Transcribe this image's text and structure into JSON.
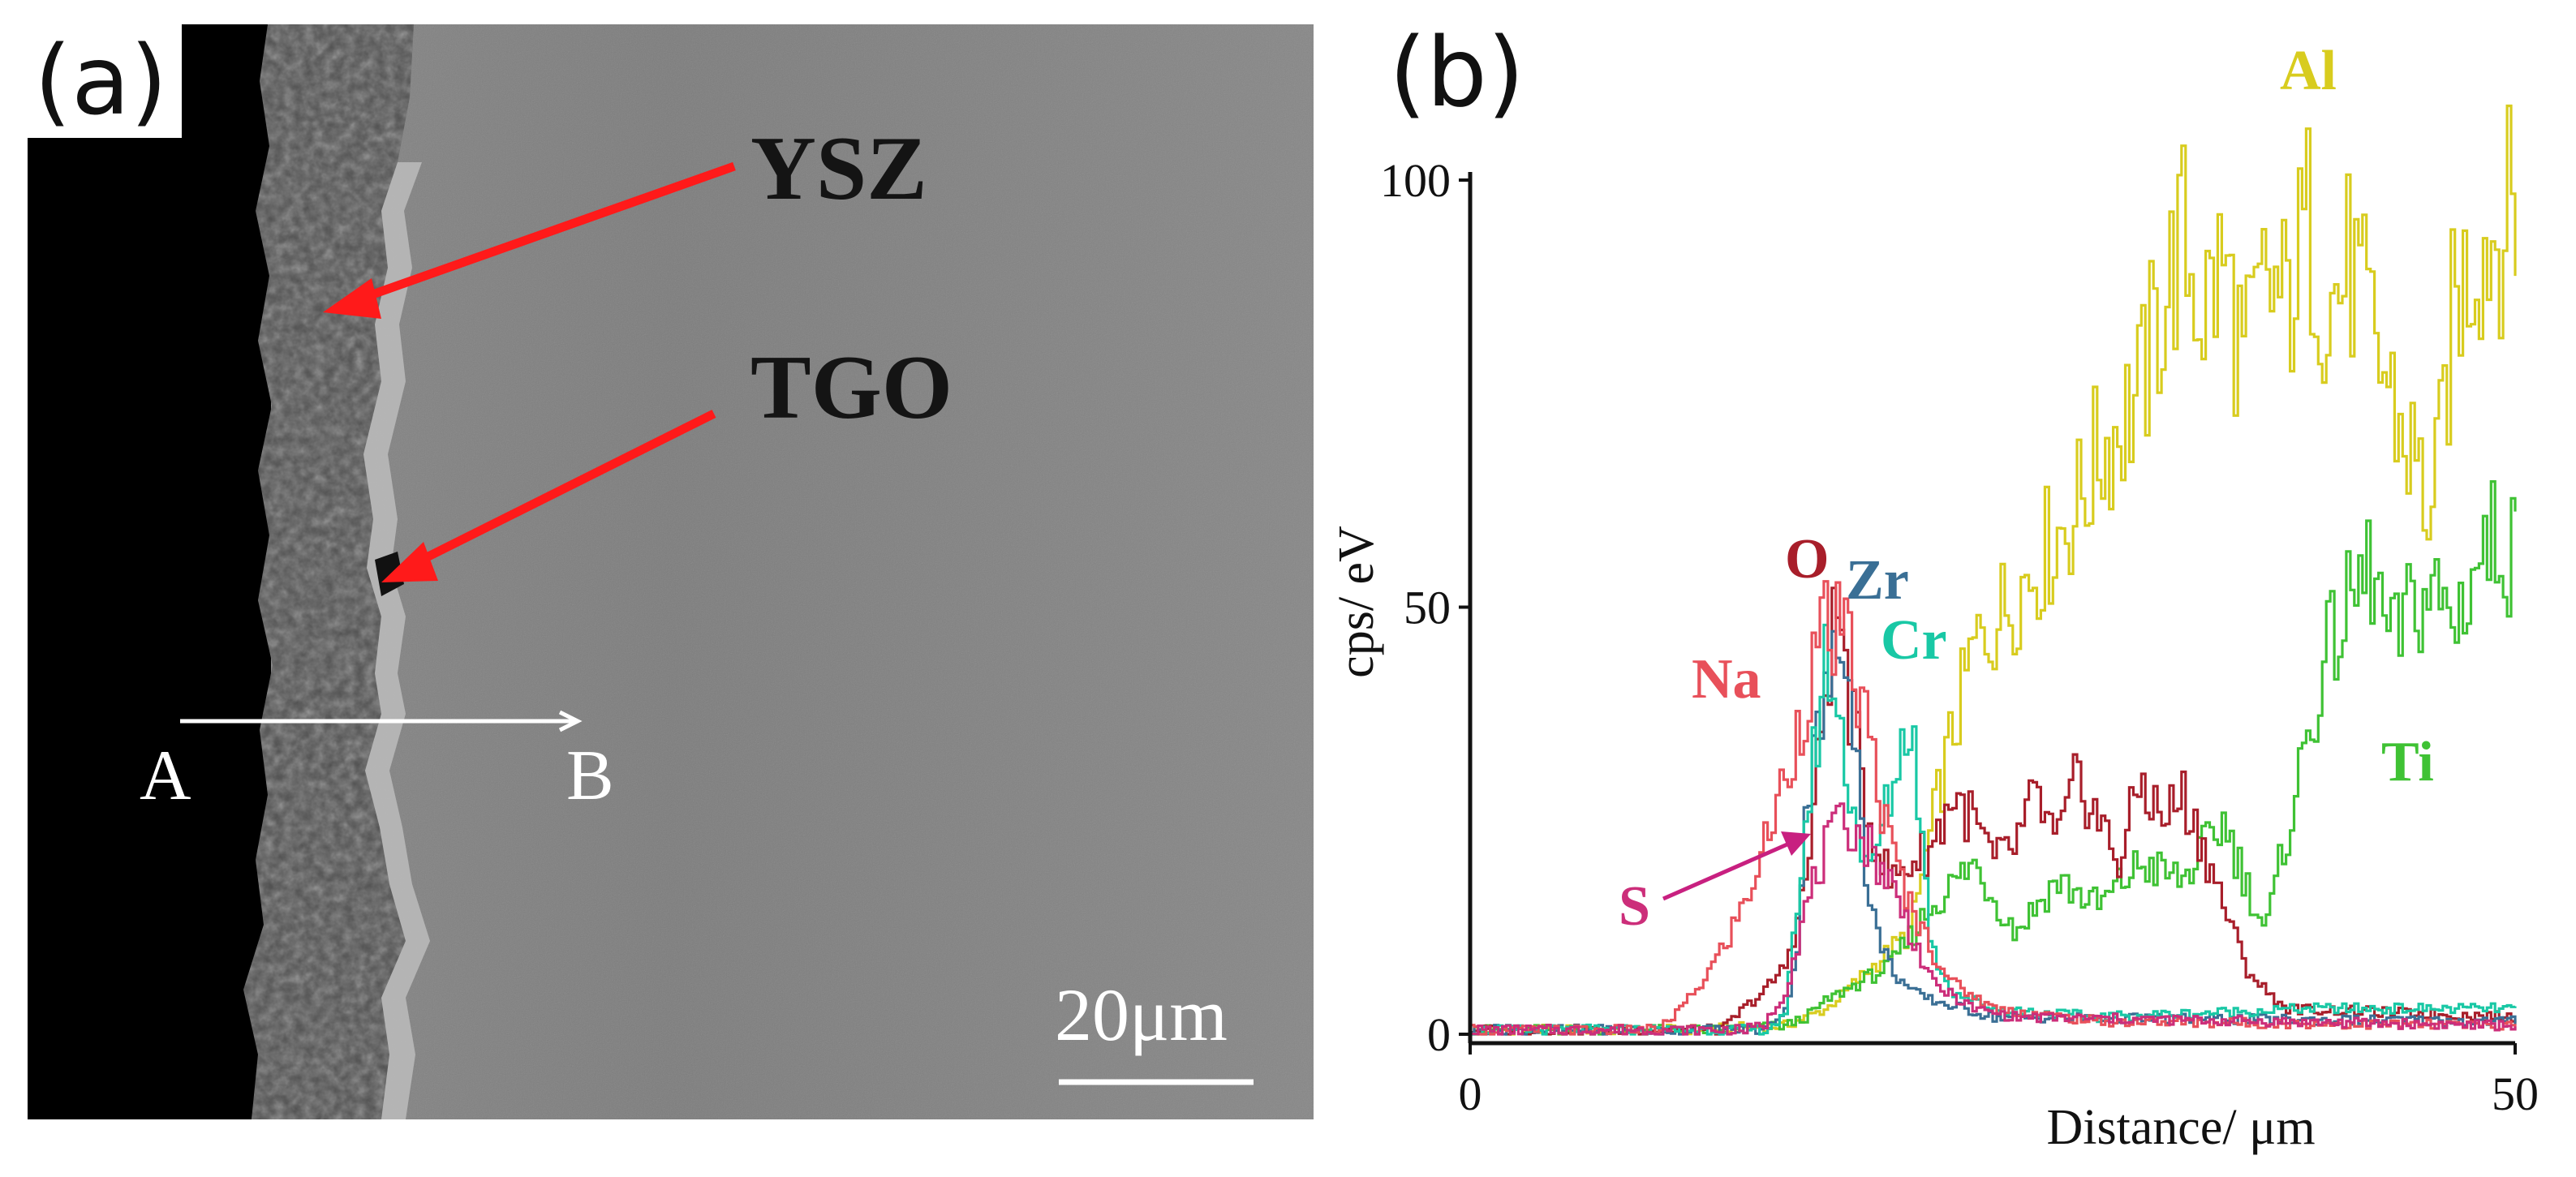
{
  "panel_a": {
    "letter": "(a)",
    "annotations": {
      "ysz": "YSZ",
      "tgo": "TGO"
    },
    "line_scan": {
      "start": "A",
      "end": "B"
    },
    "scale_bar": "20μm"
  },
  "panel_b": {
    "letter": "(b)"
  },
  "colors": {
    "Al": "#d8cc1e",
    "Ti": "#3fc234",
    "O": "#a81e2a",
    "Zr": "#3a6f95",
    "Cr": "#19c8a5",
    "Na": "#e8505a",
    "S": "#cc2e7a",
    "arrow_red": "#ff1a1a",
    "s_arrow": "#c82080"
  },
  "chart_data": {
    "type": "line",
    "title": "",
    "xlabel": "Distance/ μm",
    "ylabel": "cps/ eV",
    "xlim": [
      0,
      50
    ],
    "ylim": [
      0,
      100
    ],
    "x_ticks": [
      "0",
      "50"
    ],
    "y_ticks": [
      "0",
      "50",
      "100"
    ],
    "grid": false,
    "legend": "inline labels",
    "series": [
      {
        "name": "Al",
        "label": "Al",
        "color": "#d8cc1e",
        "points": [
          [
            0,
            0.5
          ],
          [
            10,
            0.5
          ],
          [
            15,
            1
          ],
          [
            17,
            3
          ],
          [
            21,
            12
          ],
          [
            22.5,
            30
          ],
          [
            24,
            45
          ],
          [
            27,
            55
          ],
          [
            29,
            62
          ],
          [
            30,
            68
          ],
          [
            32,
            75
          ],
          [
            33,
            85
          ],
          [
            34,
            93
          ],
          [
            35,
            85
          ],
          [
            36,
            90
          ],
          [
            37,
            78
          ],
          [
            38,
            88
          ],
          [
            39,
            85
          ],
          [
            40,
            95
          ],
          [
            41,
            85
          ],
          [
            42,
            90
          ],
          [
            43,
            82
          ],
          [
            44,
            75
          ],
          [
            44.5,
            70
          ],
          [
            45,
            68
          ],
          [
            46,
            60
          ],
          [
            47,
            85
          ],
          [
            48,
            92
          ],
          [
            49,
            94
          ],
          [
            50,
            97
          ],
          [
            50.2,
            105
          ]
        ]
      },
      {
        "name": "Ti",
        "label": "Ti",
        "color": "#3fc234",
        "points": [
          [
            0,
            0.5
          ],
          [
            12,
            0.5
          ],
          [
            15,
            1
          ],
          [
            16,
            2
          ],
          [
            17,
            4
          ],
          [
            20,
            8
          ],
          [
            22,
            15
          ],
          [
            24,
            20
          ],
          [
            26,
            12
          ],
          [
            28,
            18
          ],
          [
            30,
            15
          ],
          [
            32,
            20
          ],
          [
            34,
            18
          ],
          [
            36,
            25
          ],
          [
            37,
            18
          ],
          [
            38,
            12
          ],
          [
            40,
            35
          ],
          [
            41,
            45
          ],
          [
            42,
            50
          ],
          [
            43,
            55
          ],
          [
            44,
            45
          ],
          [
            45,
            50
          ],
          [
            46,
            52
          ],
          [
            47,
            48
          ],
          [
            48,
            55
          ],
          [
            49,
            58
          ],
          [
            50,
            56
          ]
        ]
      },
      {
        "name": "O",
        "label": "O",
        "color": "#a81e2a",
        "points": [
          [
            0,
            0.5
          ],
          [
            12,
            0.5
          ],
          [
            13,
            3
          ],
          [
            14,
            5
          ],
          [
            15,
            8
          ],
          [
            16,
            18
          ],
          [
            16.5,
            30
          ],
          [
            17,
            42
          ],
          [
            17.5,
            50
          ],
          [
            18,
            40
          ],
          [
            19,
            25
          ],
          [
            20,
            18
          ],
          [
            21,
            20
          ],
          [
            22,
            22
          ],
          [
            23,
            28
          ],
          [
            24,
            25
          ],
          [
            25,
            20
          ],
          [
            26,
            22
          ],
          [
            27,
            28
          ],
          [
            28,
            22
          ],
          [
            29,
            30
          ],
          [
            30,
            25
          ],
          [
            31,
            20
          ],
          [
            32,
            30
          ],
          [
            33,
            25
          ],
          [
            34,
            28
          ],
          [
            35,
            22
          ],
          [
            36,
            15
          ],
          [
            37,
            8
          ],
          [
            38,
            5
          ],
          [
            39,
            3
          ],
          [
            50,
            2
          ]
        ]
      },
      {
        "name": "Zr",
        "label": "Zr",
        "color": "#3a6f95",
        "points": [
          [
            0,
            0.5
          ],
          [
            14,
            0.5
          ],
          [
            15,
            3
          ],
          [
            15.5,
            8
          ],
          [
            16,
            28
          ],
          [
            17,
            40
          ],
          [
            18,
            48
          ],
          [
            18.5,
            30
          ],
          [
            19,
            15
          ],
          [
            20,
            8
          ],
          [
            21,
            5
          ],
          [
            22,
            4
          ],
          [
            25,
            2
          ],
          [
            50,
            1.5
          ]
        ]
      },
      {
        "name": "Cr",
        "label": "Cr",
        "color": "#19c8a5",
        "points": [
          [
            0,
            0.5
          ],
          [
            14,
            0.5
          ],
          [
            15,
            2
          ],
          [
            16,
            25
          ],
          [
            17,
            45
          ],
          [
            18,
            30
          ],
          [
            19,
            18
          ],
          [
            20,
            28
          ],
          [
            21,
            38
          ],
          [
            22,
            10
          ],
          [
            23,
            5
          ],
          [
            25,
            3
          ],
          [
            30,
            2
          ],
          [
            40,
            3
          ],
          [
            50,
            3
          ]
        ]
      },
      {
        "name": "Na",
        "label": "Na",
        "color": "#e8505a",
        "points": [
          [
            0,
            0.5
          ],
          [
            9,
            0.5
          ],
          [
            10,
            3
          ],
          [
            11,
            6
          ],
          [
            12,
            10
          ],
          [
            13,
            15
          ],
          [
            14,
            22
          ],
          [
            15,
            30
          ],
          [
            16,
            40
          ],
          [
            17,
            48
          ],
          [
            18,
            45
          ],
          [
            19,
            35
          ],
          [
            20,
            22
          ],
          [
            21,
            15
          ],
          [
            22,
            10
          ],
          [
            23,
            6
          ],
          [
            25,
            3
          ],
          [
            30,
            1.5
          ],
          [
            50,
            1
          ]
        ]
      },
      {
        "name": "S",
        "label": "S",
        "color": "#cc2e7a",
        "points": [
          [
            0,
            0.5
          ],
          [
            13,
            0.5
          ],
          [
            14,
            1
          ],
          [
            15,
            5
          ],
          [
            16,
            15
          ],
          [
            17,
            22
          ],
          [
            18,
            25
          ],
          [
            19,
            22
          ],
          [
            20,
            18
          ],
          [
            21,
            12
          ],
          [
            22,
            6
          ],
          [
            24,
            3
          ],
          [
            26,
            2
          ],
          [
            50,
            1
          ]
        ]
      }
    ]
  }
}
